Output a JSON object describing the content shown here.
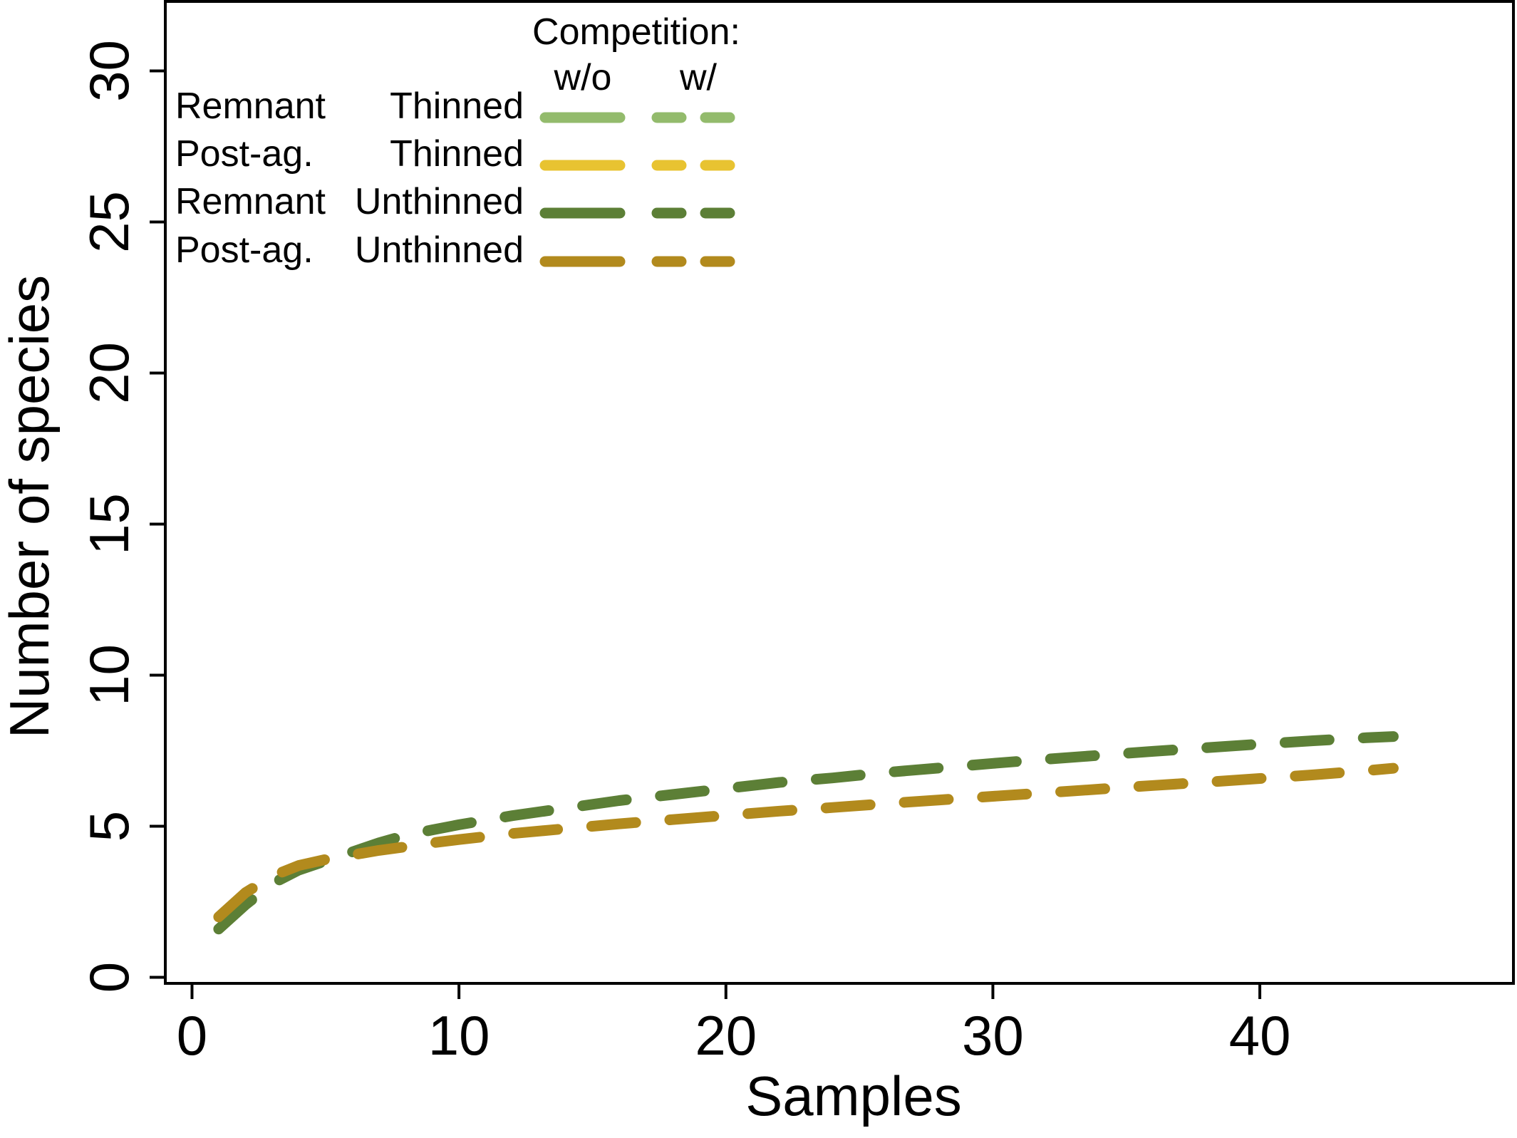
{
  "chart_data": {
    "type": "line",
    "xlabel": "Samples",
    "ylabel": "Number of species",
    "xlim": [
      -1,
      49.5
    ],
    "ylim": [
      -0.2,
      32.3
    ],
    "xticks": [
      0,
      10,
      20,
      30,
      40
    ],
    "yticks": [
      0,
      5,
      10,
      15,
      20,
      25,
      30
    ],
    "grid": false,
    "legend": {
      "placement": "top-left",
      "header": "Competition:",
      "column_labels": [
        "w/o",
        "w/"
      ],
      "rows": [
        {
          "site": "Remnant",
          "treatment": "Thinned",
          "color": "#93bb6c"
        },
        {
          "site": "Post-ag.",
          "treatment": "Thinned",
          "color": "#e8c331"
        },
        {
          "site": "Remnant",
          "treatment": "Unthinned",
          "color": "#5c7f36"
        },
        {
          "site": "Post-ag.",
          "treatment": "Unthinned",
          "color": "#b28a1d"
        }
      ]
    },
    "series": [
      {
        "name": "Remnant Unthinned w/",
        "color": "#5c7f36",
        "dashed": true,
        "x": [
          1,
          2,
          3,
          4,
          5,
          6,
          7,
          8,
          9,
          10,
          12,
          14,
          16,
          18,
          20,
          22,
          24,
          26,
          28,
          30,
          32,
          34,
          36,
          38,
          40,
          42,
          44,
          45
        ],
        "y": [
          1.6,
          2.4,
          3.1,
          3.55,
          3.85,
          4.15,
          4.45,
          4.7,
          4.88,
          5.05,
          5.35,
          5.6,
          5.85,
          6.05,
          6.25,
          6.45,
          6.6,
          6.78,
          6.93,
          7.08,
          7.22,
          7.35,
          7.48,
          7.6,
          7.72,
          7.83,
          7.93,
          7.97
        ]
      },
      {
        "name": "Post-ag. Unthinned w/",
        "color": "#b28a1d",
        "dashed": true,
        "x": [
          1,
          2,
          3,
          4,
          5,
          6,
          7,
          8,
          9,
          10,
          12,
          14,
          16,
          18,
          20,
          22,
          24,
          26,
          28,
          30,
          32,
          34,
          36,
          38,
          40,
          42,
          44,
          45
        ],
        "y": [
          2.0,
          2.8,
          3.35,
          3.7,
          3.9,
          4.05,
          4.2,
          4.32,
          4.45,
          4.56,
          4.76,
          4.92,
          5.08,
          5.22,
          5.36,
          5.5,
          5.62,
          5.75,
          5.87,
          5.99,
          6.11,
          6.23,
          6.35,
          6.46,
          6.58,
          6.7,
          6.84,
          6.92
        ]
      }
    ]
  }
}
